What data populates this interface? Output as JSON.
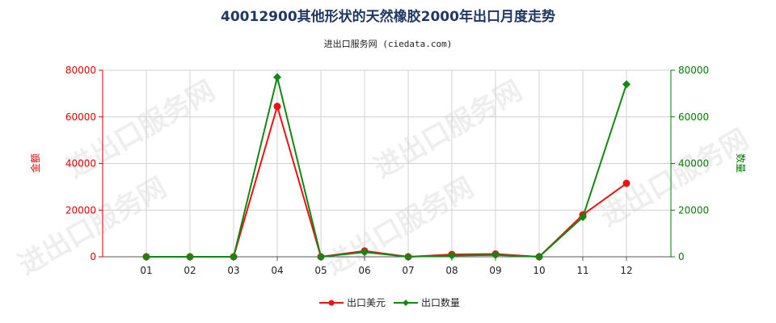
{
  "chart_data": {
    "type": "line",
    "title": "40012900其他形状的天然橡胶2000年出口月度走势",
    "subtitle": "进出口服务网 (ciedata.com)",
    "watermark": "进出口服务网",
    "categories": [
      "01",
      "02",
      "03",
      "04",
      "05",
      "06",
      "07",
      "08",
      "09",
      "10",
      "11",
      "12"
    ],
    "left_axis": {
      "label": "金额",
      "ylim": [
        0,
        80000
      ],
      "ticks": [
        0,
        20000,
        40000,
        60000,
        80000
      ],
      "color": "#e00000"
    },
    "right_axis": {
      "label": "数量",
      "ylim": [
        0,
        80000
      ],
      "ticks": [
        0,
        20000,
        40000,
        60000,
        80000
      ],
      "color": "#008000"
    },
    "series": [
      {
        "name": "出口美元",
        "axis": "left",
        "color": "#ee1111",
        "marker": "circle",
        "values": [
          0,
          0,
          0,
          64500,
          0,
          2500,
          0,
          1000,
          1200,
          0,
          18000,
          31500
        ]
      },
      {
        "name": "出口数量",
        "axis": "right",
        "color": "#118811",
        "marker": "diamond",
        "values": [
          0,
          0,
          0,
          77000,
          0,
          2000,
          0,
          500,
          800,
          0,
          17000,
          74000
        ]
      }
    ],
    "grid": true,
    "legend_position": "bottom-center"
  }
}
